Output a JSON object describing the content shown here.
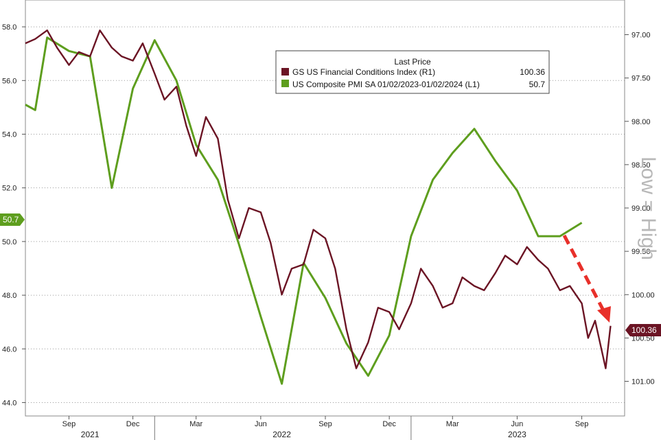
{
  "chart_data": {
    "type": "line",
    "legend": {
      "title": "Last Price",
      "placement": "top-center",
      "entries": [
        {
          "series": "fci",
          "label": "GS US Financial Conditions Index  (R1)",
          "value": "100.36"
        },
        {
          "series": "pmi",
          "label": "US Composite PMI SA 01/02/2023-01/02/2024   (L1)",
          "value": "50.7"
        }
      ]
    },
    "annotation": "Low = High",
    "x_axis": {
      "month_ticks": [
        "Sep",
        "Dec",
        "Mar",
        "Jun",
        "Sep",
        "Dec",
        "Mar",
        "Jun",
        "Sep"
      ],
      "year_labels": [
        "2021",
        "2022",
        "2023"
      ]
    },
    "left_axis": {
      "ticks": [
        "44.0",
        "46.0",
        "48.0",
        "50.0",
        "52.0",
        "54.0",
        "56.0",
        "58.0"
      ],
      "range": [
        43.5,
        59.0
      ]
    },
    "right_axis": {
      "ticks": [
        "97.00",
        "97.50",
        "98.00",
        "98.50",
        "99.00",
        "99.50",
        "100.00",
        "100.50",
        "101.00"
      ],
      "range": [
        96.6,
        101.4
      ],
      "inverted": true
    },
    "last_value_tags": [
      {
        "series": "pmi",
        "value": "50.7",
        "axis": "left"
      },
      {
        "series": "fci",
        "value": "100.36",
        "axis": "right"
      }
    ],
    "colors": {
      "fci": "#6b1424",
      "pmi": "#5e9e1e",
      "arrow": "#e8302a",
      "annotation": "#b8b8b8",
      "grid": "#9a9a9a"
    },
    "grid": "horizontal dotted",
    "series": [
      {
        "id": "pmi",
        "axis": "left",
        "points": [
          [
            "2021-07",
            55.1
          ],
          [
            "2021-07-15",
            54.9
          ],
          [
            "2021-08",
            57.6
          ],
          [
            "2021-09",
            57.1
          ],
          [
            "2021-10",
            56.9
          ],
          [
            "2021-11",
            52.0
          ],
          [
            "2021-12",
            55.7
          ],
          [
            "2022-01",
            57.5
          ],
          [
            "2022-02",
            56.0
          ],
          [
            "2022-03",
            53.6
          ],
          [
            "2022-04",
            52.3
          ],
          [
            "2022-05",
            49.9
          ],
          [
            "2022-06",
            47.2
          ],
          [
            "2022-07",
            44.7
          ],
          [
            "2022-08",
            49.2
          ],
          [
            "2022-09",
            47.9
          ],
          [
            "2022-10",
            46.2
          ],
          [
            "2022-11",
            45.0
          ],
          [
            "2022-12",
            46.5
          ],
          [
            "2023-01",
            50.2
          ],
          [
            "2023-02",
            52.3
          ],
          [
            "2023-03",
            53.3
          ],
          [
            "2023-04",
            54.2
          ],
          [
            "2023-05",
            53.0
          ],
          [
            "2023-06",
            51.9
          ],
          [
            "2023-07",
            50.2
          ],
          [
            "2023-08",
            50.2
          ],
          [
            "2023-09",
            50.7
          ]
        ]
      },
      {
        "id": "fci",
        "axis": "right",
        "points": [
          [
            "2021-07",
            97.1
          ],
          [
            "2021-07-15",
            97.05
          ],
          [
            "2021-08",
            96.95
          ],
          [
            "2021-08-15",
            97.15
          ],
          [
            "2021-09",
            97.35
          ],
          [
            "2021-09-15",
            97.2
          ],
          [
            "2021-10",
            97.25
          ],
          [
            "2021-10-15",
            96.95
          ],
          [
            "2021-11",
            97.15
          ],
          [
            "2021-11-15",
            97.25
          ],
          [
            "2021-12",
            97.3
          ],
          [
            "2021-12-15",
            97.1
          ],
          [
            "2022-01",
            97.45
          ],
          [
            "2022-01-15",
            97.75
          ],
          [
            "2022-02",
            97.6
          ],
          [
            "2022-02-15",
            98.05
          ],
          [
            "2022-03",
            98.4
          ],
          [
            "2022-03-15",
            97.95
          ],
          [
            "2022-04",
            98.2
          ],
          [
            "2022-04-15",
            98.9
          ],
          [
            "2022-05",
            99.35
          ],
          [
            "2022-05-15",
            99.0
          ],
          [
            "2022-06",
            99.05
          ],
          [
            "2022-06-15",
            99.4
          ],
          [
            "2022-07",
            100.0
          ],
          [
            "2022-07-15",
            99.7
          ],
          [
            "2022-08",
            99.65
          ],
          [
            "2022-08-15",
            99.25
          ],
          [
            "2022-09",
            99.35
          ],
          [
            "2022-09-15",
            99.7
          ],
          [
            "2022-10",
            100.4
          ],
          [
            "2022-10-15",
            100.85
          ],
          [
            "2022-11",
            100.55
          ],
          [
            "2022-11-15",
            100.15
          ],
          [
            "2022-12",
            100.2
          ],
          [
            "2022-12-15",
            100.4
          ],
          [
            "2023-01",
            100.1
          ],
          [
            "2023-01-15",
            99.7
          ],
          [
            "2023-02",
            99.9
          ],
          [
            "2023-02-15",
            100.15
          ],
          [
            "2023-03",
            100.1
          ],
          [
            "2023-03-15",
            99.8
          ],
          [
            "2023-04",
            99.9
          ],
          [
            "2023-04-15",
            99.95
          ],
          [
            "2023-05",
            99.75
          ],
          [
            "2023-05-15",
            99.55
          ],
          [
            "2023-06",
            99.65
          ],
          [
            "2023-06-15",
            99.45
          ],
          [
            "2023-07",
            99.6
          ],
          [
            "2023-07-15",
            99.7
          ],
          [
            "2023-08",
            99.95
          ],
          [
            "2023-08-15",
            99.9
          ],
          [
            "2023-09",
            100.1
          ],
          [
            "2023-09-10",
            100.5
          ],
          [
            "2023-09-20",
            100.3
          ],
          [
            "2023-10-05",
            100.85
          ],
          [
            "2023-10-12",
            100.36
          ]
        ]
      }
    ]
  }
}
